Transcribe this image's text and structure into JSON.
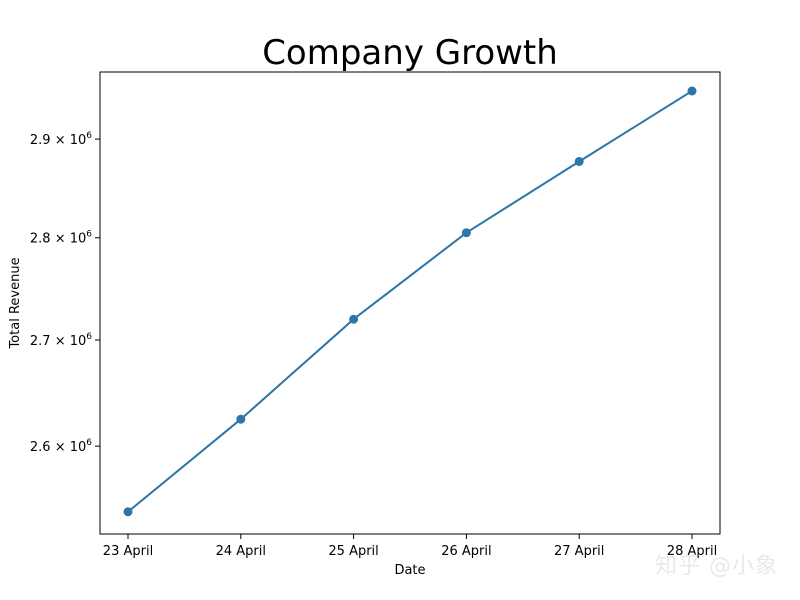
{
  "chart_data": {
    "type": "line",
    "title": "Company Growth",
    "xlabel": "Date",
    "ylabel": "Total Revenue",
    "yscale": "log",
    "categories": [
      "23 April",
      "24 April",
      "25 April",
      "26 April",
      "27 April",
      "28 April"
    ],
    "series": [
      {
        "values": [
          2540000,
          2625000,
          2720000,
          2805000,
          2877000,
          2950000
        ],
        "color": "#2e75a8",
        "marker": "circle"
      }
    ],
    "yticks": [
      {
        "value": 2600000,
        "mantissa": "2.6",
        "times": "×",
        "base": "10",
        "exp": "6"
      },
      {
        "value": 2700000,
        "mantissa": "2.7",
        "times": "×",
        "base": "10",
        "exp": "6"
      },
      {
        "value": 2800000,
        "mantissa": "2.8",
        "times": "×",
        "base": "10",
        "exp": "6"
      },
      {
        "value": 2900000,
        "mantissa": "2.9",
        "times": "×",
        "base": "10",
        "exp": "6"
      }
    ],
    "ylim": [
      2520000,
      2970000
    ],
    "grid": false,
    "legend": "none"
  },
  "watermark": "知乎 @小象"
}
